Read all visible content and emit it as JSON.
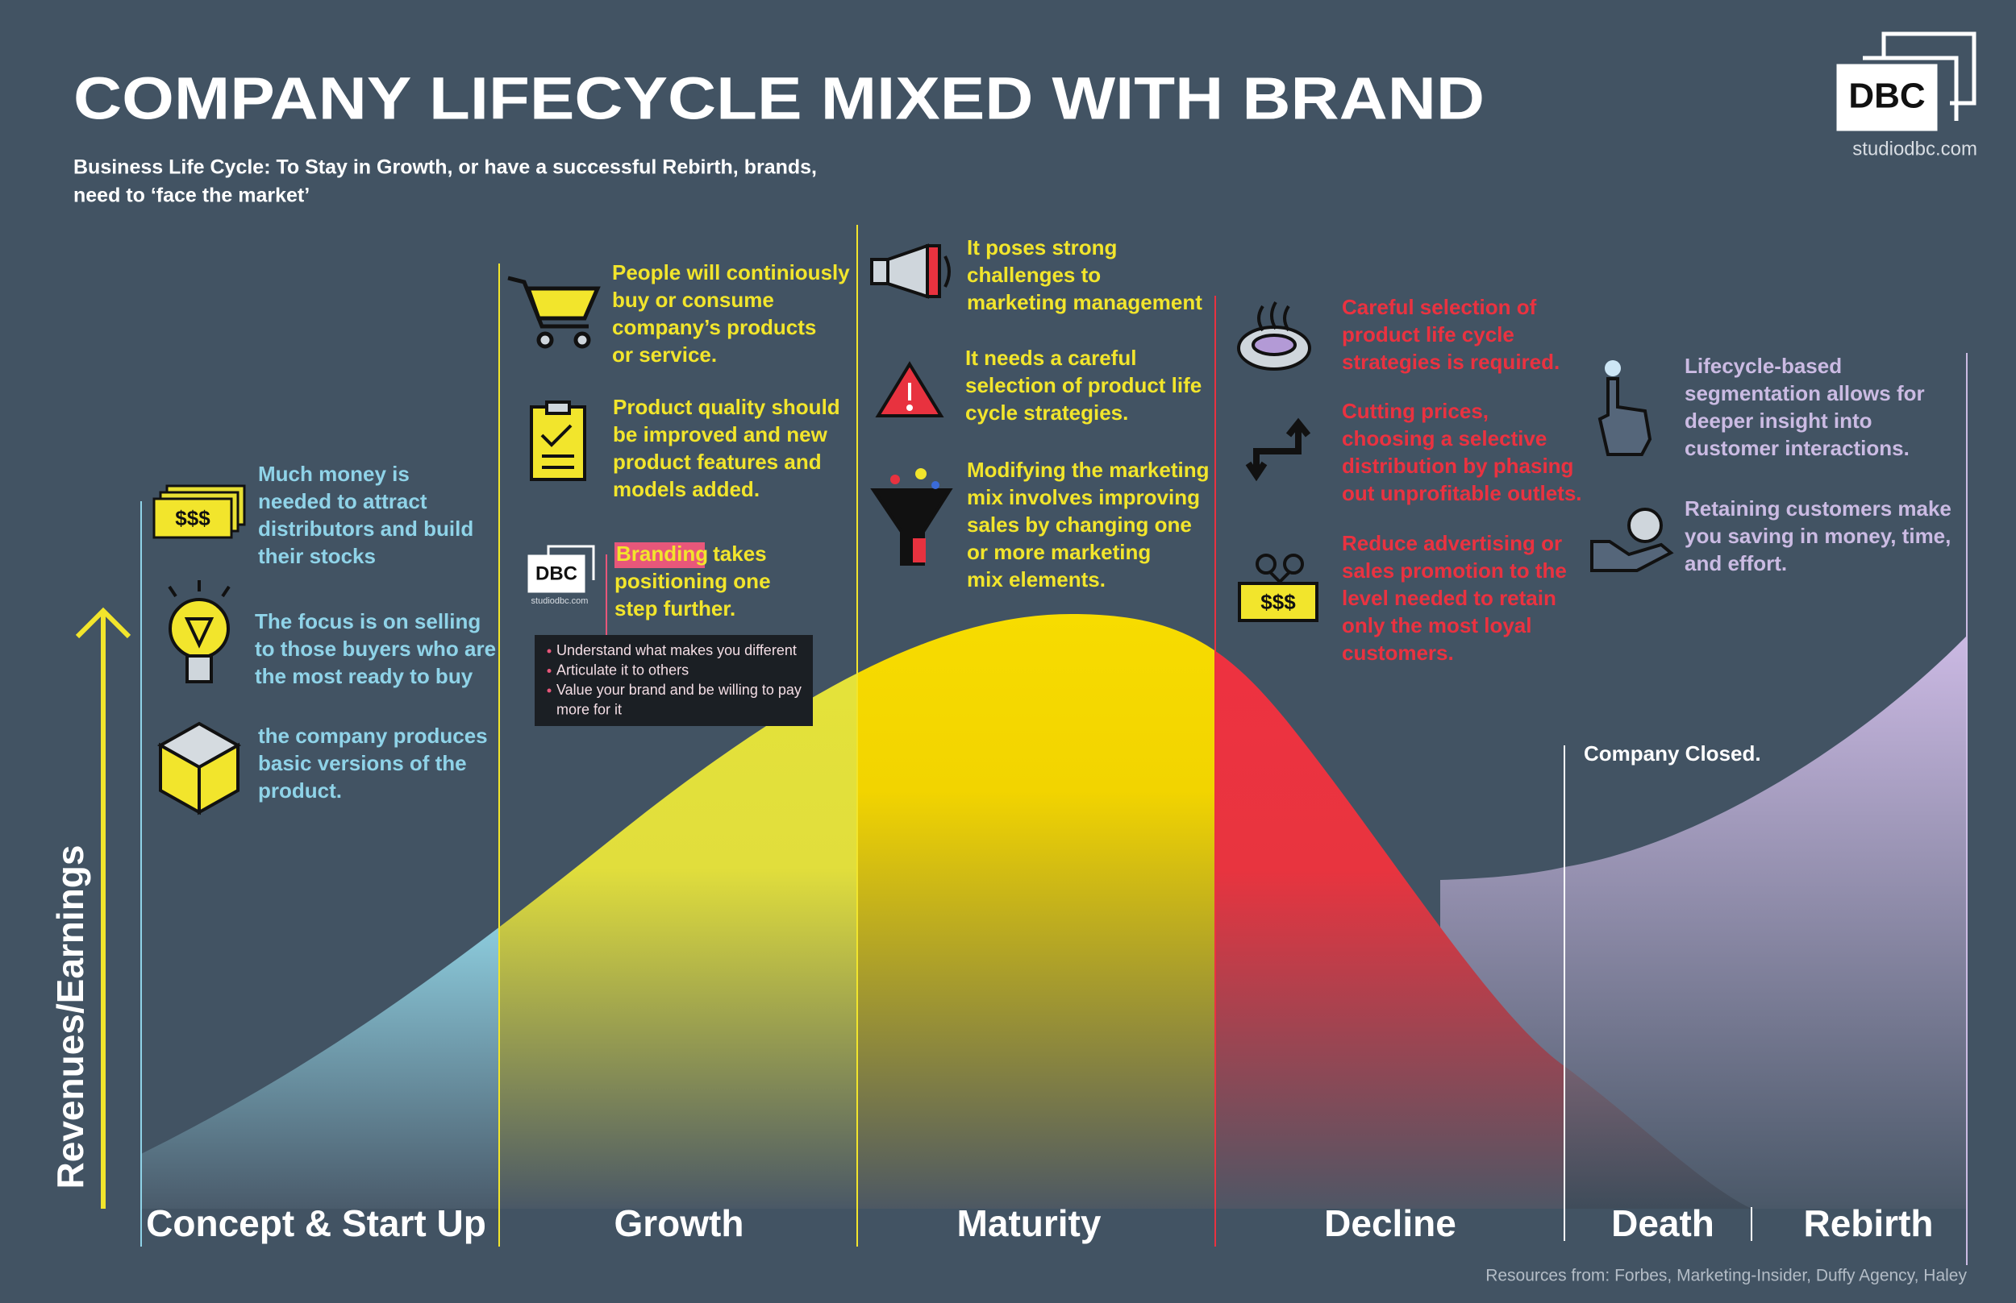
{
  "header": {
    "title": "COMPANY LIFECYCLE MIXED WITH BRAND",
    "subtitle": [
      "Business Life Cycle: To Stay in Growth, or have a successful Rebirth, brands,",
      "need to ‘face the market’"
    ],
    "logo": "DBC",
    "website": "studiodbc.com"
  },
  "y_axis_label": "Revenues/Earnings",
  "stages": [
    {
      "label": "Concept & Start Up",
      "color": "#8fd3e8",
      "notes": [
        {
          "icon_text": "$$$",
          "lines": [
            "Much money is",
            "needed to attract",
            "distributors and build",
            "their stocks"
          ]
        },
        {
          "lines": [
            "The focus is on selling",
            "to those buyers who are",
            "the most ready to buy"
          ]
        },
        {
          "lines": [
            "the company produces",
            "basic versions of the",
            "product."
          ]
        }
      ]
    },
    {
      "label": "Growth",
      "color": "#f2e52c",
      "notes": [
        {
          "lines": [
            "People will continiously",
            "buy or consume",
            "company’s products",
            "or service."
          ]
        },
        {
          "lines": [
            "Product quality should",
            "be improved and new",
            "product features and",
            "models added."
          ]
        },
        {
          "icon_logo": "DBC",
          "icon_website": "studiodbc.com",
          "highlight": "Branding",
          "lines": [
            "takes",
            "positioning one",
            "step further."
          ],
          "bullets": [
            [
              "Understand what makes you different"
            ],
            [
              "Articulate it to others"
            ],
            [
              "Value your brand and be willing to pay",
              "more for it"
            ]
          ]
        }
      ]
    },
    {
      "label": "Maturity",
      "color": "#f2e52c",
      "notes": [
        {
          "lines": [
            "It poses strong",
            "challenges to",
            "marketing management"
          ]
        },
        {
          "lines": [
            "It needs a careful",
            "selection of product life",
            "cycle strategies."
          ]
        },
        {
          "lines": [
            "Modifying the marketing",
            "mix involves improving",
            "sales by changing one",
            "or more marketing",
            " mix elements."
          ]
        }
      ]
    },
    {
      "label": "Decline",
      "color": "#ea3240",
      "notes": [
        {
          "lines": [
            "Careful selection of",
            "product life cycle",
            "strategies is required."
          ]
        },
        {
          "lines": [
            "Cutting prices,",
            "choosing a selective",
            "distribution by phasing",
            "out unprofitable outlets."
          ]
        },
        {
          "icon_text": "$$$",
          "lines": [
            "Reduce advertising or",
            "sales promotion to the",
            "level needed to retain",
            "only the most loyal",
            "customers."
          ]
        }
      ]
    },
    {
      "label": "Death",
      "color": "#ffffff",
      "notes": [
        {
          "lines": [
            "Company Closed."
          ]
        }
      ]
    },
    {
      "label": "Rebirth",
      "color": "#cbbbe3",
      "notes": [
        {
          "lines": [
            "Lifecycle-based",
            "segmentation allows for",
            "deeper insight into",
            "customer interactions."
          ]
        },
        {
          "lines": [
            "Retaining customers make",
            "you saving in money, time,",
            "and effort."
          ]
        }
      ]
    }
  ],
  "footer": "Resources from: Forbes, Marketing-Insider, Duffy Agency, Haley"
}
